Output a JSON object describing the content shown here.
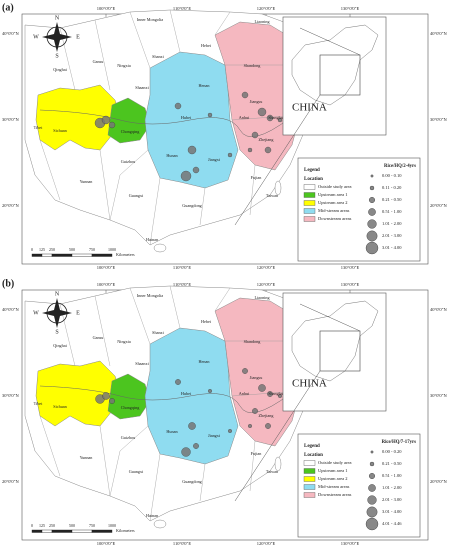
{
  "panels": [
    {
      "label": "(a)",
      "legend_title": "Rice/HQ/2-4yrs",
      "classes": [
        "0.00 - 0.10",
        "0.11 - 0.20",
        "0.21 - 0.50",
        "0.51 - 1.00",
        "1.01 - 2.00",
        "2.01 - 3.00",
        "3.01 - 4.00"
      ]
    },
    {
      "label": "(b)",
      "legend_title": "Rice/HQ/7-17yrs",
      "classes": [
        "0.00 - 0.20",
        "0.21 - 0.50",
        "0.51 - 1.00",
        "1.01 - 2.00",
        "2.01 - 3.00",
        "3.01 - 4.00",
        "4.01 - 4.46"
      ]
    }
  ],
  "lon_labels": [
    "100°0'0\"E",
    "110°0'0\"E",
    "120°0'0\"E",
    "130°0'0\"E"
  ],
  "lat_labels": [
    "40°0'0\"N",
    "30°0'0\"N",
    "20°0'0\"N"
  ],
  "compass": [
    "N",
    "E",
    "S",
    "W"
  ],
  "provinces": [
    "Inner Mongolia",
    "Liaoning",
    "Qinghai",
    "Gansu",
    "Ningxia",
    "Shanxi",
    "Hebei",
    "Shaanxi",
    "Shandong",
    "Henan",
    "Jiangsu",
    "Sichuan",
    "Chongqing",
    "Hubei",
    "Anhui",
    "Shanghai",
    "Zhejiang",
    "Tibet",
    "Hunan",
    "Jiangxi",
    "Guizhou",
    "Fujian",
    "Yunnan",
    "Guangxi",
    "Guangdong",
    "Taiwan",
    "Hainan"
  ],
  "inset_label": "CHINA",
  "scale": {
    "ticks": [
      "0",
      "125",
      "250",
      "500",
      "750",
      "1000"
    ],
    "unit": "Kilometers"
  },
  "legend": {
    "title": "Legend",
    "subtitle": "Location",
    "items": [
      "Outside study area",
      "Upstream area 1",
      "Upstream area 2",
      "Mid-stream areas",
      "Downstream areas"
    ]
  }
}
